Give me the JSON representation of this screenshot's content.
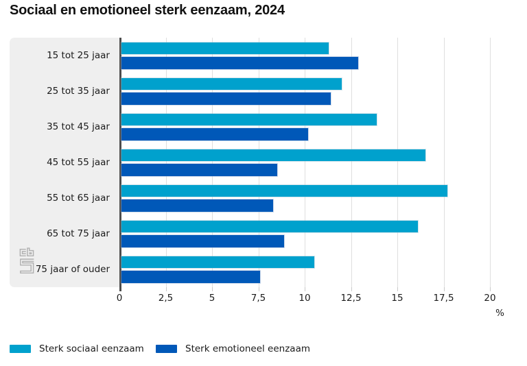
{
  "header": {
    "title": "Sociaal en emotioneel sterk eenzaam, 2024",
    "menu_icon": "hamburger-menu-icon"
  },
  "branding": {
    "logo": "cbs-logo"
  },
  "chart_data": {
    "type": "bar",
    "orientation": "horizontal",
    "title": "Sociaal en emotioneel sterk eenzaam, 2024",
    "categories": [
      "15 tot 25 jaar",
      "25 tot 35 jaar",
      "35 tot 45 jaar",
      "45 tot 55 jaar",
      "55 tot 65 jaar",
      "65 tot 75 jaar",
      "75 jaar of ouder"
    ],
    "series": [
      {
        "name": "Sterk sociaal eenzaam",
        "color": "#00a1cd",
        "values": [
          11.3,
          12.0,
          13.9,
          16.5,
          17.7,
          16.1,
          10.5
        ]
      },
      {
        "name": "Sterk emotioneel eenzaam",
        "color": "#0058b8",
        "values": [
          12.9,
          11.4,
          10.2,
          8.5,
          8.3,
          8.9,
          7.6
        ]
      }
    ],
    "x_ticks": [
      "0",
      "2,5",
      "5",
      "7,5",
      "10",
      "12,5",
      "15",
      "17,5",
      "20"
    ],
    "x_tick_values": [
      0,
      2.5,
      5,
      7.5,
      10,
      12.5,
      15,
      17.5,
      20
    ],
    "xlim": [
      0,
      21
    ],
    "unit_label": "%",
    "grid": true,
    "legend_position": "bottom",
    "plot_bg": "#ffffff",
    "label_panel_bg": "#efefef",
    "axis_color": "#4d4d4d",
    "gridline_color": "#dedede"
  }
}
